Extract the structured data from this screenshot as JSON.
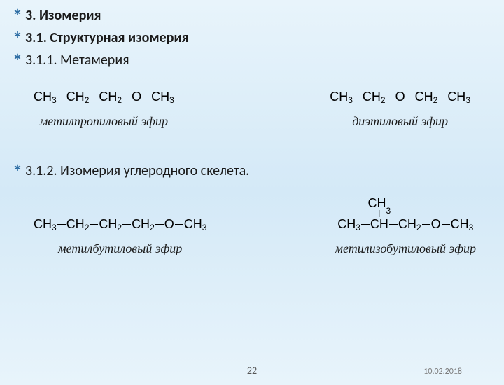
{
  "headings": {
    "h1": "3. Изомерия",
    "h2": "3.1.  Структурная изомерия",
    "h3": " 3.1.1. Метамерия"
  },
  "section1": {
    "left_caption": "метилпропиловый эфир",
    "right_caption": "диэтиловый эфир"
  },
  "section2": {
    "heading": "3.1.2. Изомерия углеродного скелета.",
    "left_caption": "метилбутиловый эфир",
    "right_caption": "метилизобутиловый эфир"
  },
  "footer": {
    "page": "22",
    "date": "10.02.2018"
  },
  "formula_parts": {
    "CH": "CH",
    "O": "O",
    "s2": "2",
    "s3": "3"
  }
}
